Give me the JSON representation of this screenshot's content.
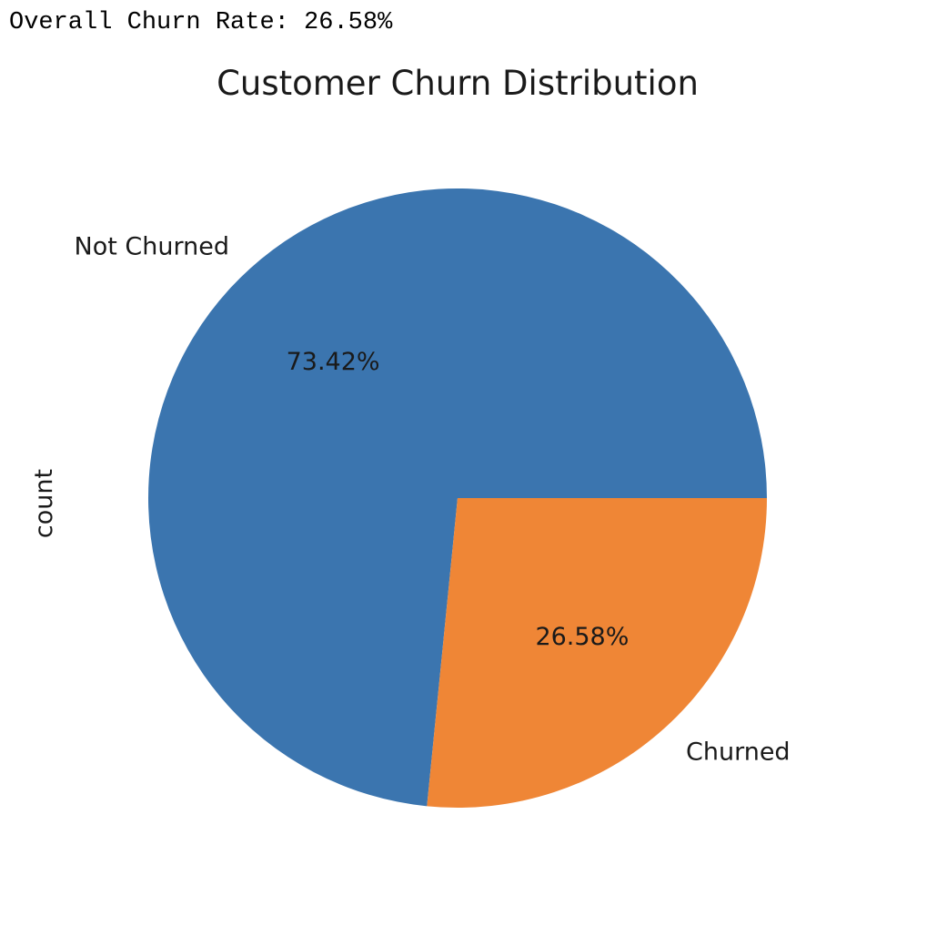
{
  "output": {
    "text": "Overall Churn Rate: 26.58%"
  },
  "chart_data": {
    "type": "pie",
    "title": "Customer Churn Distribution",
    "ylabel": "count",
    "labels": [
      "Not Churned",
      "Churned"
    ],
    "values": [
      73.42,
      26.58
    ],
    "value_labels": [
      "73.42%",
      "26.58%"
    ],
    "colors": [
      "#3b75af",
      "#ef8636"
    ],
    "start_angle_deg": 0,
    "direction": "counterclockwise"
  }
}
